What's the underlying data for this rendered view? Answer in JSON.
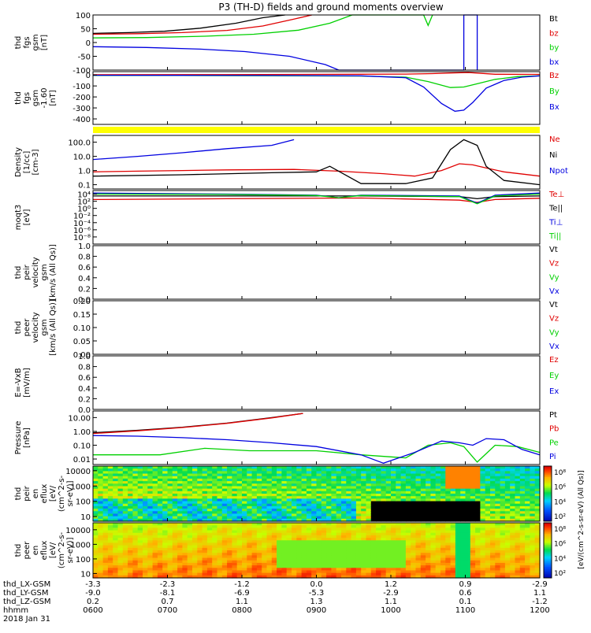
{
  "title": "P3 (TH-D) fields and ground moments overview",
  "colors": {
    "black": "#000000",
    "red": "#e00000",
    "green": "#00d000",
    "blue": "#0000e0",
    "yellow": "#ffff00"
  },
  "chart_data": [
    {
      "type": "line",
      "ylabel": [
        "thd",
        "fgs",
        "gsm",
        "[nT]"
      ],
      "ylim": [
        -100,
        100
      ],
      "ticks": [
        "100",
        "50",
        "0",
        "-50",
        "-100"
      ],
      "tick_values": [
        100,
        50,
        0,
        -50,
        -100
      ],
      "series": [
        {
          "name": "Bt",
          "color": "black",
          "x": [
            0.0,
            0.08,
            0.16,
            0.24,
            0.32,
            0.38,
            0.43
          ],
          "y": [
            33,
            36,
            41,
            52,
            70,
            90,
            100
          ]
        },
        {
          "name": "bz",
          "color": "red",
          "x": [
            0.0,
            0.1,
            0.2,
            0.3,
            0.38,
            0.45,
            0.49
          ],
          "y": [
            30,
            32,
            36,
            44,
            60,
            85,
            100
          ]
        },
        {
          "name": "by",
          "color": "green",
          "x": [
            0.0,
            0.12,
            0.25,
            0.36,
            0.46,
            0.53,
            0.58,
            0.74,
            0.75,
            0.76
          ],
          "y": [
            17,
            18,
            23,
            30,
            45,
            70,
            100,
            100,
            62,
            100
          ]
        },
        {
          "name": "bx",
          "color": "blue",
          "x": [
            0.0,
            0.12,
            0.24,
            0.34,
            0.44,
            0.52,
            0.55,
            0.83,
            0.83,
            0.86,
            0.86
          ],
          "y": [
            -15,
            -18,
            -24,
            -33,
            -50,
            -80,
            -100,
            -100,
            100,
            100,
            -100
          ]
        }
      ]
    },
    {
      "type": "line",
      "ylabel": [
        "thd",
        "fgs",
        "gsm",
        "-1.60",
        "[nT]"
      ],
      "ylim": [
        -450,
        30
      ],
      "ticks": [
        "0",
        "-100",
        "-200",
        "-300",
        "-400"
      ],
      "tick_values": [
        0,
        -100,
        -200,
        -300,
        -400
      ],
      "series": [
        {
          "name": "Bz",
          "color": "red",
          "x": [
            0,
            0.3,
            0.6,
            0.7,
            0.76,
            0.8,
            0.84,
            0.87,
            0.9,
            1.0
          ],
          "y": [
            2,
            3,
            6,
            8,
            12,
            18,
            22,
            14,
            6,
            5
          ]
        },
        {
          "name": "By",
          "color": "green",
          "x": [
            0,
            0.2,
            0.4,
            0.6,
            0.7,
            0.75,
            0.8,
            0.83,
            0.86,
            0.9,
            0.95,
            1.0
          ],
          "y": [
            -5,
            -5,
            -7,
            -10,
            -20,
            -60,
            -115,
            -110,
            -80,
            -40,
            -15,
            -8
          ]
        },
        {
          "name": "Bx",
          "color": "blue",
          "x": [
            0,
            0.2,
            0.4,
            0.6,
            0.7,
            0.74,
            0.78,
            0.81,
            0.83,
            0.85,
            0.88,
            0.92,
            0.96,
            1.0
          ],
          "y": [
            -3,
            -4,
            -5,
            -8,
            -25,
            -110,
            -260,
            -330,
            -320,
            -250,
            -120,
            -50,
            -20,
            -8
          ]
        }
      ]
    },
    {
      "type": "line",
      "ylabel": [
        "Density",
        "[1/cc]",
        "[cm-3]"
      ],
      "yscale": "log",
      "ylim": [
        0.05,
        300
      ],
      "ticks": [
        "100.0",
        "10.0",
        "1.0",
        "0.1"
      ],
      "tick_values": [
        100,
        10,
        1,
        0.1
      ],
      "series": [
        {
          "name": "Ne",
          "color": "red",
          "x": [
            0,
            0.1,
            0.2,
            0.3,
            0.45,
            0.55,
            0.65,
            0.72,
            0.78,
            0.82,
            0.85,
            0.88,
            0.92,
            1.0
          ],
          "y": [
            0.8,
            0.9,
            1.0,
            1.1,
            1.2,
            0.9,
            0.6,
            0.4,
            1.0,
            3.0,
            2.5,
            1.5,
            0.8,
            0.4
          ]
        },
        {
          "name": "Ni",
          "color": "black",
          "x": [
            0,
            0.2,
            0.4,
            0.5,
            0.53,
            0.6,
            0.7,
            0.76,
            0.8,
            0.83,
            0.86,
            0.88,
            0.92,
            1.0
          ],
          "y": [
            0.4,
            0.5,
            0.7,
            0.8,
            2.0,
            0.12,
            0.12,
            0.3,
            30,
            150,
            60,
            2.0,
            0.2,
            0.1
          ]
        },
        {
          "name": "Npot",
          "color": "blue",
          "x": [
            0,
            0.1,
            0.2,
            0.3,
            0.4,
            0.45
          ],
          "y": [
            6,
            10,
            18,
            35,
            60,
            150
          ]
        }
      ]
    },
    {
      "type": "line",
      "ylabel": [
        "moqt3",
        "[eV]"
      ],
      "yscale": "log",
      "ylim": [
        1e-10,
        100000.0
      ],
      "ticks": [
        "10⁴",
        "10²",
        "10⁰",
        "10⁻²",
        "10⁻⁴",
        "10⁻⁶",
        "10⁻⁸"
      ],
      "tick_values": [
        10000.0,
        100.0,
        1,
        0.01,
        0.0001,
        1e-06,
        1e-08
      ],
      "series": [
        {
          "name": "Te⊥",
          "color": "red",
          "x": [
            0,
            0.3,
            0.6,
            0.82,
            0.86,
            0.9,
            1.0
          ],
          "y": [
            300.0,
            500.0,
            800.0,
            200.0,
            50.0,
            300.0,
            700.0
          ]
        },
        {
          "name": "Te||",
          "color": "black",
          "x": [
            0,
            0.3,
            0.6,
            0.82,
            0.86,
            0.9,
            1.0
          ],
          "y": [
            3000.0,
            3000.0,
            3000.0,
            2000.0,
            500.0,
            2000.0,
            3000.0
          ]
        },
        {
          "name": "Ti⊥",
          "color": "blue",
          "x": [
            0,
            0.3,
            0.5,
            0.55,
            0.6,
            0.82,
            0.86,
            0.9,
            1.0
          ],
          "y": [
            20000.0,
            10000.0,
            5000.0,
            1000.0,
            5000.0,
            3000.0,
            30.0,
            5000.0,
            20000.0
          ]
        },
        {
          "name": "Ti||",
          "color": "green",
          "x": [
            0,
            0.3,
            0.5,
            0.55,
            0.6,
            0.82,
            0.86,
            0.9,
            1.0
          ],
          "y": [
            10000.0,
            8000.0,
            4000.0,
            1000.0,
            4000.0,
            2000.0,
            20.0,
            3000.0,
            10000.0
          ]
        }
      ]
    },
    {
      "type": "line",
      "ylabel": [
        "thd",
        "peir",
        "velocity",
        "gsm",
        "[km/s (All Qs)]"
      ],
      "ylim": [
        0,
        1
      ],
      "ticks": [
        "1.0",
        "0.8",
        "0.6",
        "0.4",
        "0.2",
        "0.0"
      ],
      "tick_values": [
        1.0,
        0.8,
        0.6,
        0.4,
        0.2,
        0.0
      ],
      "series": [
        {
          "name": "Vt",
          "color": "black"
        },
        {
          "name": "Vz",
          "color": "red"
        },
        {
          "name": "Vy",
          "color": "green"
        },
        {
          "name": "Vx",
          "color": "blue"
        }
      ]
    },
    {
      "type": "line",
      "ylabel": [
        "thd",
        "peer",
        "velocity",
        "gsm",
        "[km/s (All Qs)]"
      ],
      "ylim": [
        0,
        0.2
      ],
      "ticks": [
        "0.20",
        "0.15",
        "0.10",
        "0.05",
        "0.00"
      ],
      "tick_values": [
        0.2,
        0.15,
        0.1,
        0.05,
        0.0
      ],
      "series": [
        {
          "name": "Vt",
          "color": "black"
        },
        {
          "name": "Vz",
          "color": "red"
        },
        {
          "name": "Vy",
          "color": "green"
        },
        {
          "name": "Vx",
          "color": "blue"
        }
      ]
    },
    {
      "type": "line",
      "ylabel": [
        "E=-VxB",
        "[mV/m]"
      ],
      "ylim": [
        0,
        1
      ],
      "ticks": [
        "1.0",
        "0.8",
        "0.6",
        "0.4",
        "0.2",
        "0.0"
      ],
      "tick_values": [
        1.0,
        0.8,
        0.6,
        0.4,
        0.2,
        0.0
      ],
      "series": [
        {
          "name": "Ez",
          "color": "red"
        },
        {
          "name": "Ey",
          "color": "green"
        },
        {
          "name": "Ex",
          "color": "blue"
        }
      ]
    },
    {
      "type": "line",
      "ylabel": [
        "Pressure",
        "[nPa]"
      ],
      "yscale": "log",
      "ylim": [
        0.004,
        30
      ],
      "ticks": [
        "10.00",
        "1.00",
        "0.10",
        "0.01"
      ],
      "tick_values": [
        10,
        1,
        0.1,
        0.01
      ],
      "series": [
        {
          "name": "Pt",
          "color": "black",
          "x": [
            0,
            0.1,
            0.2,
            0.3,
            0.4,
            0.47
          ],
          "y": [
            0.8,
            1.2,
            2.0,
            4.0,
            10,
            20
          ]
        },
        {
          "name": "Pb",
          "color": "red",
          "x": [
            0,
            0.1,
            0.2,
            0.3,
            0.4,
            0.47
          ],
          "y": [
            0.7,
            1.1,
            1.9,
            3.8,
            9.5,
            20
          ]
        },
        {
          "name": "Pe",
          "color": "green",
          "x": [
            0,
            0.15,
            0.25,
            0.35,
            0.5,
            0.6,
            0.7,
            0.75,
            0.8,
            0.83,
            0.86,
            0.9,
            0.95,
            1.0
          ],
          "y": [
            0.02,
            0.02,
            0.06,
            0.04,
            0.04,
            0.02,
            0.012,
            0.1,
            0.15,
            0.08,
            0.006,
            0.1,
            0.08,
            0.03
          ]
        },
        {
          "name": "Pi",
          "color": "blue",
          "x": [
            0,
            0.1,
            0.2,
            0.3,
            0.4,
            0.5,
            0.6,
            0.65,
            0.72,
            0.78,
            0.82,
            0.85,
            0.88,
            0.92,
            0.96,
            1.0
          ],
          "y": [
            0.5,
            0.45,
            0.35,
            0.25,
            0.15,
            0.08,
            0.02,
            0.005,
            0.03,
            0.2,
            0.15,
            0.1,
            0.3,
            0.25,
            0.05,
            0.02
          ]
        }
      ]
    },
    {
      "type": "heatmap",
      "ylabel": [
        "thd",
        "peir",
        "en",
        "eflux",
        "[eV/",
        "(cm^2-s-",
        "sr-eV)]"
      ],
      "yscale": "log",
      "ylim": [
        5,
        20000
      ],
      "ticks": [
        "10000",
        "1000",
        "100",
        "10"
      ],
      "tick_values": [
        10000,
        1000,
        100,
        10
      ],
      "colorbar": {
        "ticks": [
          "10⁸",
          "10⁶",
          "10⁴",
          "10²"
        ]
      }
    },
    {
      "type": "heatmap",
      "ylabel": [
        "thd",
        "peer",
        "en",
        "eflux",
        "[eV/",
        "(cm^2-s-",
        "sr-eV)]"
      ],
      "yscale": "log",
      "ylim": [
        5,
        30000
      ],
      "ticks": [
        "10000",
        "1000",
        "100",
        "10"
      ],
      "tick_values": [
        10000,
        1000,
        100,
        10
      ],
      "colorbar": {
        "ticks": [
          "10⁸",
          "10⁶",
          "10⁴",
          "10²"
        ]
      }
    }
  ],
  "colorbar_label": "[eV/(cm^2-s-sr-eV) (All Qs)]",
  "xaxis": {
    "rows": [
      {
        "label": "thd_LX-GSM",
        "values": [
          "-3.3",
          "-2.3",
          "-1.2",
          "0.0",
          "1.2",
          "0.9",
          "-2.9"
        ]
      },
      {
        "label": "thd_LY-GSM",
        "values": [
          "-9.0",
          "-8.1",
          "-6.9",
          "-5.3",
          "-2.9",
          "0.6",
          "1.1"
        ]
      },
      {
        "label": "thd_LZ-GSM",
        "values": [
          "0.2",
          "0.7",
          "1.1",
          "1.3",
          "1.1",
          "0.1",
          "-1.2"
        ]
      },
      {
        "label": "hhmm",
        "values": [
          "0600",
          "0700",
          "0800",
          "0900",
          "1000",
          "1100",
          "1200"
        ]
      }
    ],
    "date": "2018 Jan 31"
  }
}
